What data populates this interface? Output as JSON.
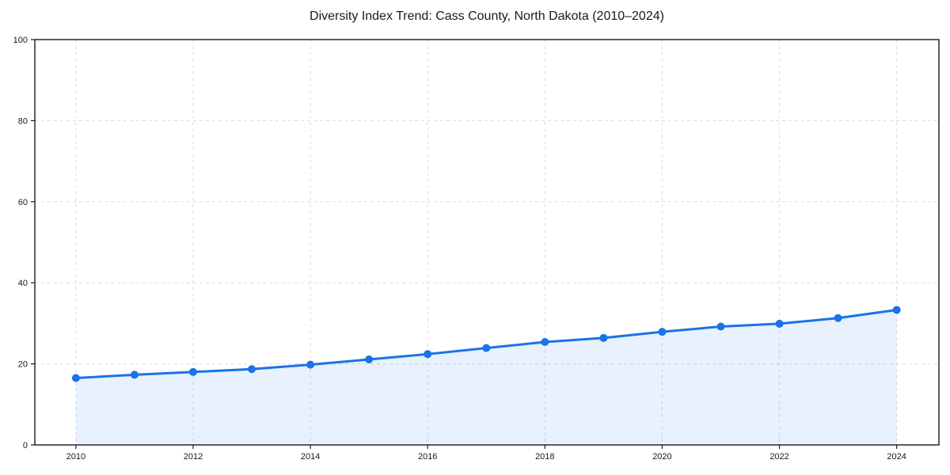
{
  "chart_data": {
    "type": "line",
    "title": "Diversity Index Trend: Cass County, North Dakota (2010–2024)",
    "x": [
      2010,
      2011,
      2012,
      2013,
      2014,
      2015,
      2016,
      2017,
      2018,
      2019,
      2020,
      2021,
      2022,
      2023,
      2024
    ],
    "series": [
      {
        "name": "Diversity Index",
        "values": [
          16.5,
          17.3,
          18.0,
          18.7,
          19.8,
          21.1,
          22.4,
          23.9,
          25.4,
          26.4,
          27.9,
          29.2,
          29.9,
          31.3,
          33.3
        ]
      }
    ],
    "xlabel": "",
    "ylabel": "",
    "xlim": [
      2009.3,
      2024.72
    ],
    "ylim": [
      0,
      100
    ],
    "xticks": [
      2010,
      2012,
      2014,
      2016,
      2018,
      2020,
      2022,
      2024
    ],
    "yticks": [
      0,
      20,
      40,
      60,
      80,
      100
    ],
    "grid": true,
    "grid_style": "dashed",
    "legend": false,
    "marker": "circle",
    "colors": {
      "line": "#1a73e8",
      "marker": "#1a73e8",
      "area_fill": "rgba(26,115,232,0.10)",
      "grid": "#dcdcdc",
      "spine": "#1a1a1a",
      "tick_label": "#1a1a1a",
      "background": "#ffffff"
    }
  }
}
